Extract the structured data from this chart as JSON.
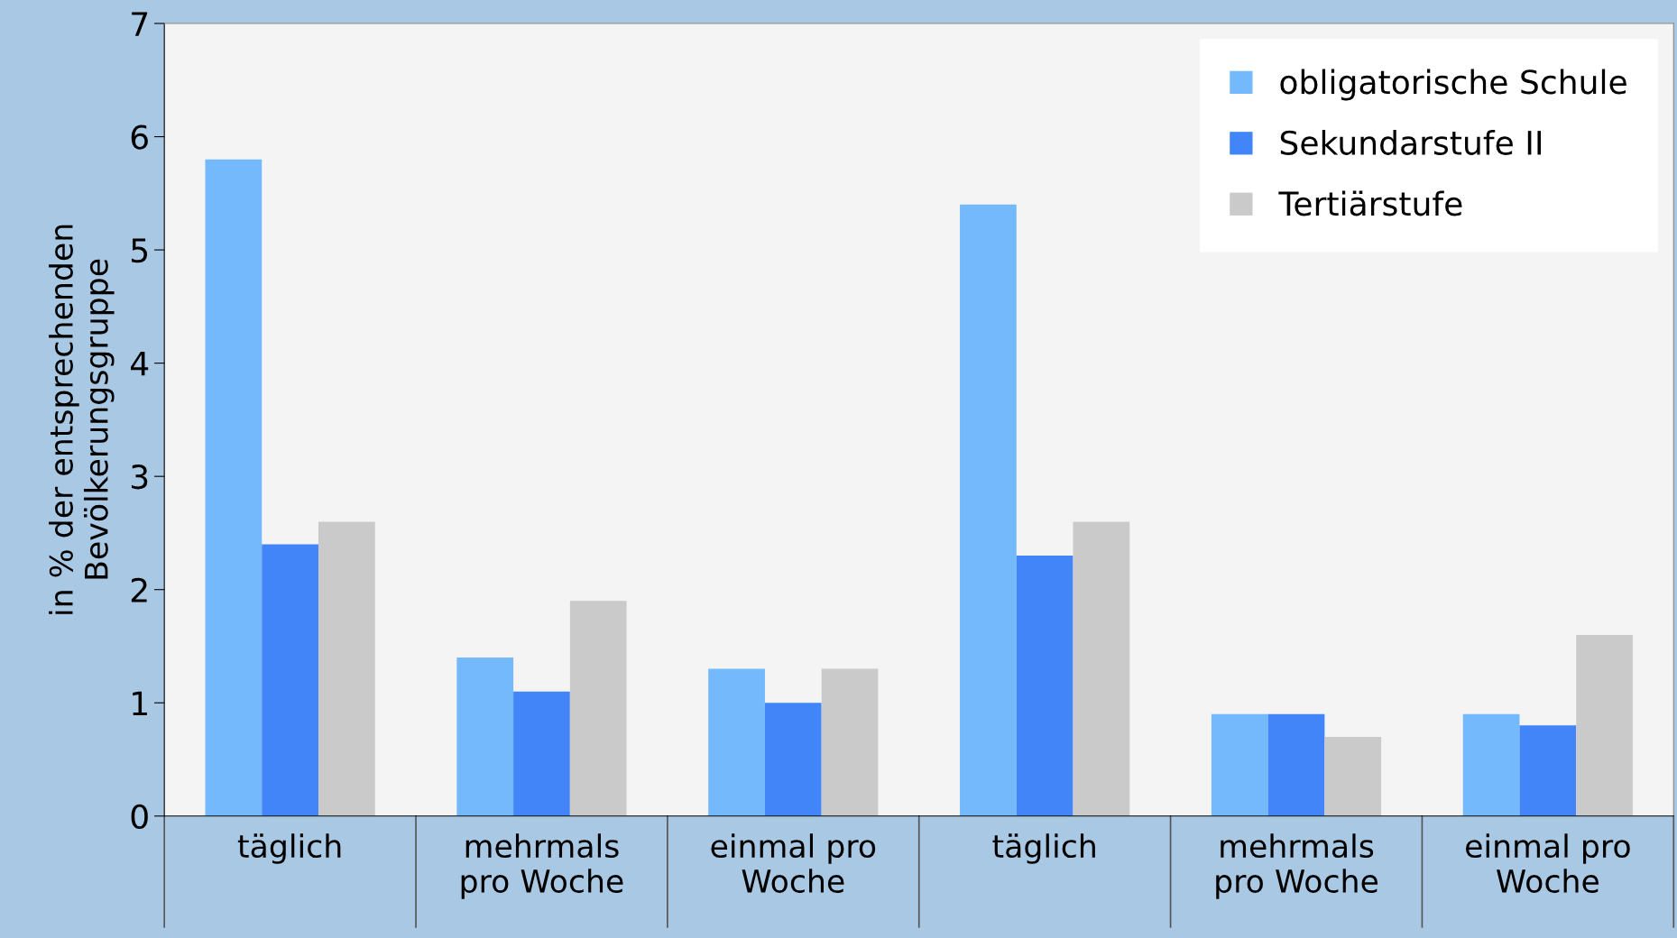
{
  "chart_data": {
    "type": "bar",
    "ylabel": "in % der entsprechenden\nBevölkerungsgruppe",
    "categories": [
      "täglich",
      "mehrmals\npro Woche",
      "einmal pro\nWoche",
      "täglich",
      "mehrmals\npro Woche",
      "einmal pro\nWoche"
    ],
    "series": [
      {
        "name": "obligatorische Schule",
        "color": "#74b9fc",
        "values": [
          5.8,
          1.4,
          1.3,
          5.4,
          0.9,
          0.9
        ]
      },
      {
        "name": "Sekundarstufe II",
        "color": "#4285f8",
        "values": [
          2.4,
          1.1,
          1.0,
          2.3,
          0.9,
          0.8
        ]
      },
      {
        "name": "Tertiärstufe",
        "color": "#cacaca",
        "values": [
          2.6,
          1.9,
          1.3,
          2.6,
          0.7,
          1.6
        ]
      }
    ],
    "ylim": [
      0,
      7
    ],
    "yticks": [
      0,
      1,
      2,
      3,
      4,
      5,
      6,
      7
    ],
    "grid": false,
    "legend": "top right"
  }
}
